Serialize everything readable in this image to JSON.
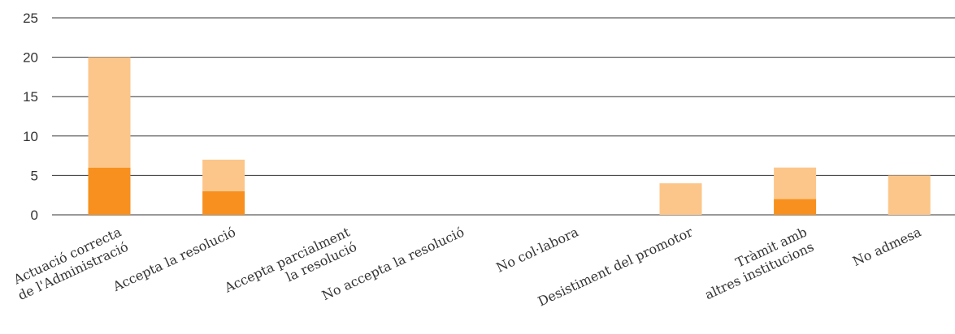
{
  "chart_data": {
    "type": "bar",
    "stacked": true,
    "categories": [
      [
        "Actuació correcta",
        "de l'Administració"
      ],
      [
        "Accepta la resolució"
      ],
      [
        "Accepta parcialment",
        "la resolució"
      ],
      [
        "No accepta la resolució"
      ],
      [
        "No col·labora"
      ],
      [
        "Desistiment del promotor"
      ],
      [
        "Tràmit amb",
        "altres institucions"
      ],
      [
        "No admesa"
      ]
    ],
    "series": [
      {
        "color": "#f7901e",
        "values": [
          6,
          3,
          0,
          0,
          0,
          0,
          2,
          0
        ]
      },
      {
        "color": "#fcc68a",
        "values": [
          14,
          4,
          0,
          0,
          0,
          4,
          4,
          5
        ]
      }
    ],
    "ylim": [
      0,
      25
    ],
    "yticks": [
      "0",
      "5",
      "10",
      "15",
      "20",
      "25"
    ],
    "grid": true,
    "title": "",
    "xlabel": "",
    "ylabel": ""
  }
}
